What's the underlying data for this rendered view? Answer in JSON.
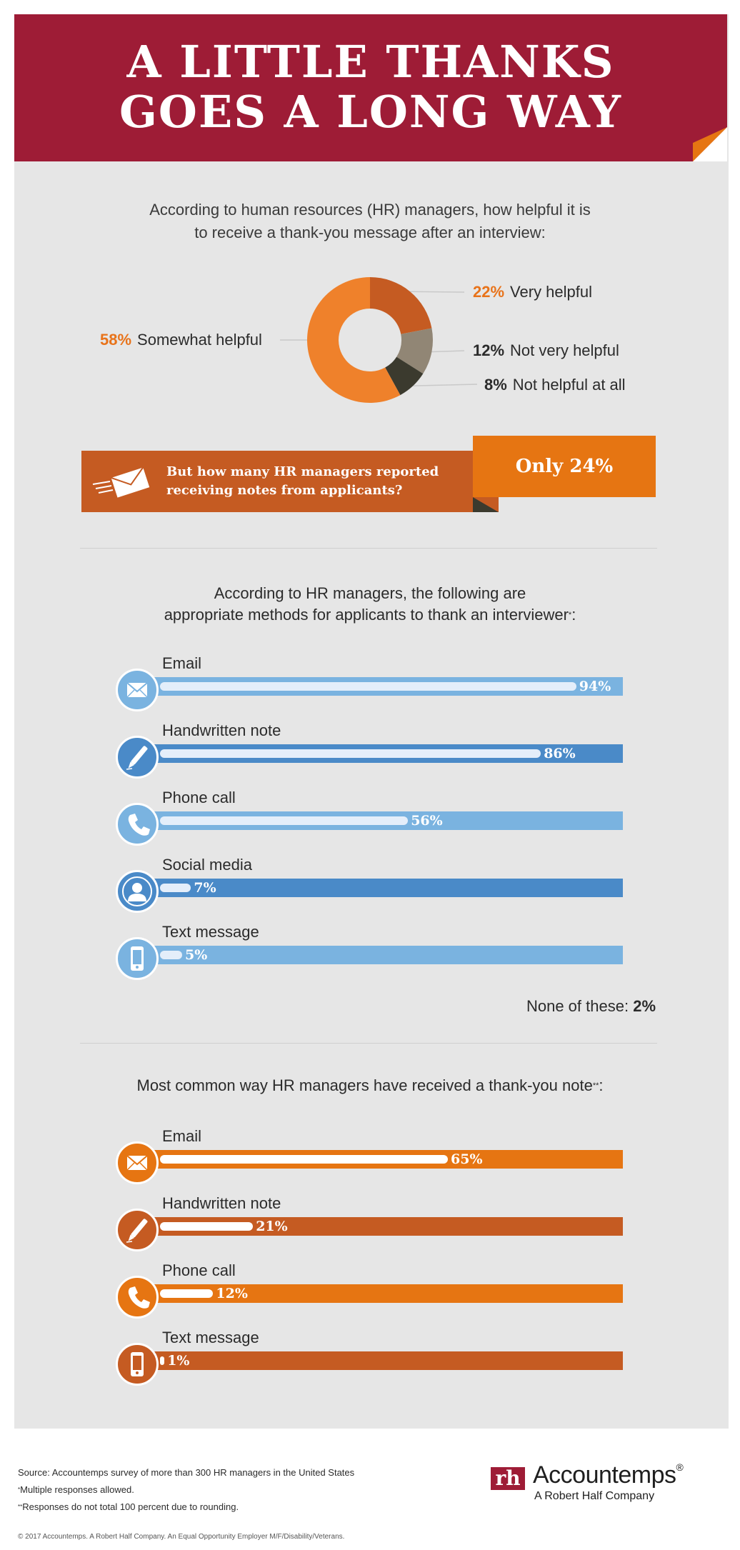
{
  "header": {
    "title_line1": "A LITTLE THANKS",
    "title_line2": "GOES A LONG WAY"
  },
  "section1": {
    "question_line1": "According to human resources (HR) managers, how helpful it is",
    "question_line2": "to receive a thank-you message after an interview:"
  },
  "callout": {
    "question_line1": "But how many HR managers reported",
    "question_line2": "receiving notes from applicants?",
    "answer": "Only 24%"
  },
  "section2": {
    "question_line1": "According to HR managers, the following are",
    "question_line2": "appropriate methods for applicants to thank an interviewer",
    "footnote_mark": "*",
    "none_label": "None of these:",
    "none_value": "2%"
  },
  "section3": {
    "question": "Most common way HR managers have received a thank-you note",
    "footnote_mark": "**"
  },
  "colors": {
    "crimson": "#9e1c36",
    "orange": "#e67512",
    "burnt_orange": "#c55b22",
    "light_blue": "#7ab3e0",
    "mid_blue": "#4a8ac8"
  },
  "chart_data": [
    {
      "type": "pie",
      "categories": [
        "Very helpful",
        "Not very helpful",
        "Not helpful at all",
        "Somewhat helpful"
      ],
      "values": [
        22,
        12,
        8,
        58
      ],
      "labels": [
        "22%",
        "12%",
        "8%",
        "58%"
      ],
      "colors": [
        "#c55b22",
        "#918675",
        "#3b3a2e",
        "#ef812b"
      ]
    },
    {
      "type": "bar",
      "categories": [
        "Email",
        "Handwritten note",
        "Phone call",
        "Social media",
        "Text message"
      ],
      "values": [
        94,
        86,
        56,
        7,
        5
      ],
      "labels": [
        "94%",
        "86%",
        "56%",
        "7%",
        "5%"
      ],
      "icons": [
        "email-icon",
        "pen-icon",
        "phone-icon",
        "person-icon",
        "mobile-phone-icon"
      ],
      "colors": [
        "#7ab3e0",
        "#4a8ac8",
        "#7ab3e0",
        "#4a8ac8",
        "#7ab3e0"
      ],
      "ylim": [
        0,
        100
      ]
    },
    {
      "type": "bar",
      "categories": [
        "Email",
        "Handwritten note",
        "Phone call",
        "Text message"
      ],
      "values": [
        65,
        21,
        12,
        1
      ],
      "labels": [
        "65%",
        "21%",
        "12%",
        "1%"
      ],
      "icons": [
        "email-icon",
        "pen-icon",
        "phone-icon",
        "mobile-phone-icon"
      ],
      "colors": [
        "#e67512",
        "#c55b22",
        "#e67512",
        "#c55b22"
      ],
      "ylim": [
        0,
        100
      ]
    }
  ],
  "footer": {
    "source": "Source: Accountemps survey of more than 300 HR managers in the United States",
    "note1_mark": "*",
    "note1": "Multiple responses allowed.",
    "note2_mark": "**",
    "note2": "Responses do not total 100 percent due to rounding.",
    "copyright": "© 2017 Accountemps. A Robert Half Company. An Equal Opportunity Employer M/F/Disability/Veterans."
  },
  "logo": {
    "mark": "rh",
    "name": "Accountemps",
    "registered": "®",
    "tagline": "A Robert Half Company"
  }
}
